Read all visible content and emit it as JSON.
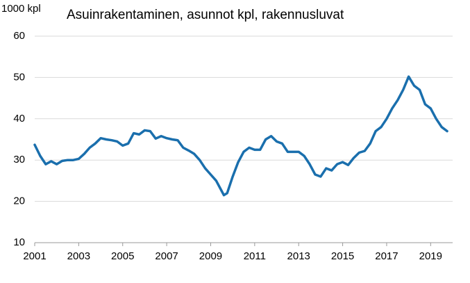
{
  "chart_data": {
    "type": "line",
    "title": "Asuinrakentaminen, asunnot kpl, rakennusluvat",
    "y_unit": "1000 kpl",
    "x": [
      2001.0,
      2001.25,
      2001.5,
      2001.75,
      2002.0,
      2002.25,
      2002.5,
      2002.75,
      2003.0,
      2003.25,
      2003.5,
      2003.75,
      2004.0,
      2004.25,
      2004.5,
      2004.75,
      2005.0,
      2005.25,
      2005.5,
      2005.75,
      2006.0,
      2006.25,
      2006.5,
      2006.75,
      2007.0,
      2007.25,
      2007.5,
      2007.75,
      2008.0,
      2008.25,
      2008.5,
      2008.75,
      2009.0,
      2009.25,
      2009.5,
      2009.6,
      2009.75,
      2010.0,
      2010.25,
      2010.5,
      2010.75,
      2011.0,
      2011.25,
      2011.5,
      2011.75,
      2012.0,
      2012.25,
      2012.5,
      2012.75,
      2013.0,
      2013.25,
      2013.5,
      2013.75,
      2014.0,
      2014.25,
      2014.5,
      2014.75,
      2015.0,
      2015.25,
      2015.5,
      2015.75,
      2016.0,
      2016.25,
      2016.5,
      2016.75,
      2017.0,
      2017.25,
      2017.5,
      2017.75,
      2018.0,
      2018.25,
      2018.5,
      2018.75,
      2019.0,
      2019.25,
      2019.5,
      2019.75
    ],
    "values": [
      33.7,
      31,
      29,
      29.7,
      29,
      29.8,
      30,
      30,
      30.3,
      31.5,
      33,
      34,
      35.3,
      35,
      34.8,
      34.5,
      33.5,
      34,
      36.5,
      36.2,
      37.2,
      37,
      35.2,
      35.8,
      35.3,
      35,
      34.8,
      33,
      32.3,
      31.5,
      30,
      28,
      26.5,
      25,
      22.5,
      21.5,
      22,
      26,
      29.5,
      32,
      33,
      32.5,
      32.5,
      35,
      35.8,
      34.5,
      34,
      32,
      32,
      32,
      31,
      29,
      26.5,
      26,
      28,
      27.5,
      29,
      29.5,
      28.8,
      30.5,
      31.8,
      32.2,
      34,
      37,
      38,
      40,
      42.5,
      44.5,
      47,
      50.2,
      48,
      47,
      43.5,
      42.5,
      40,
      38,
      37
    ],
    "color": "#1a6fad",
    "xlim": [
      2001,
      2020
    ],
    "xticks": [
      2001,
      2003,
      2005,
      2007,
      2009,
      2011,
      2013,
      2015,
      2017,
      2019
    ],
    "ylim": [
      10,
      60
    ],
    "yticks": [
      10,
      20,
      30,
      40,
      50,
      60
    ],
    "grid": true
  }
}
